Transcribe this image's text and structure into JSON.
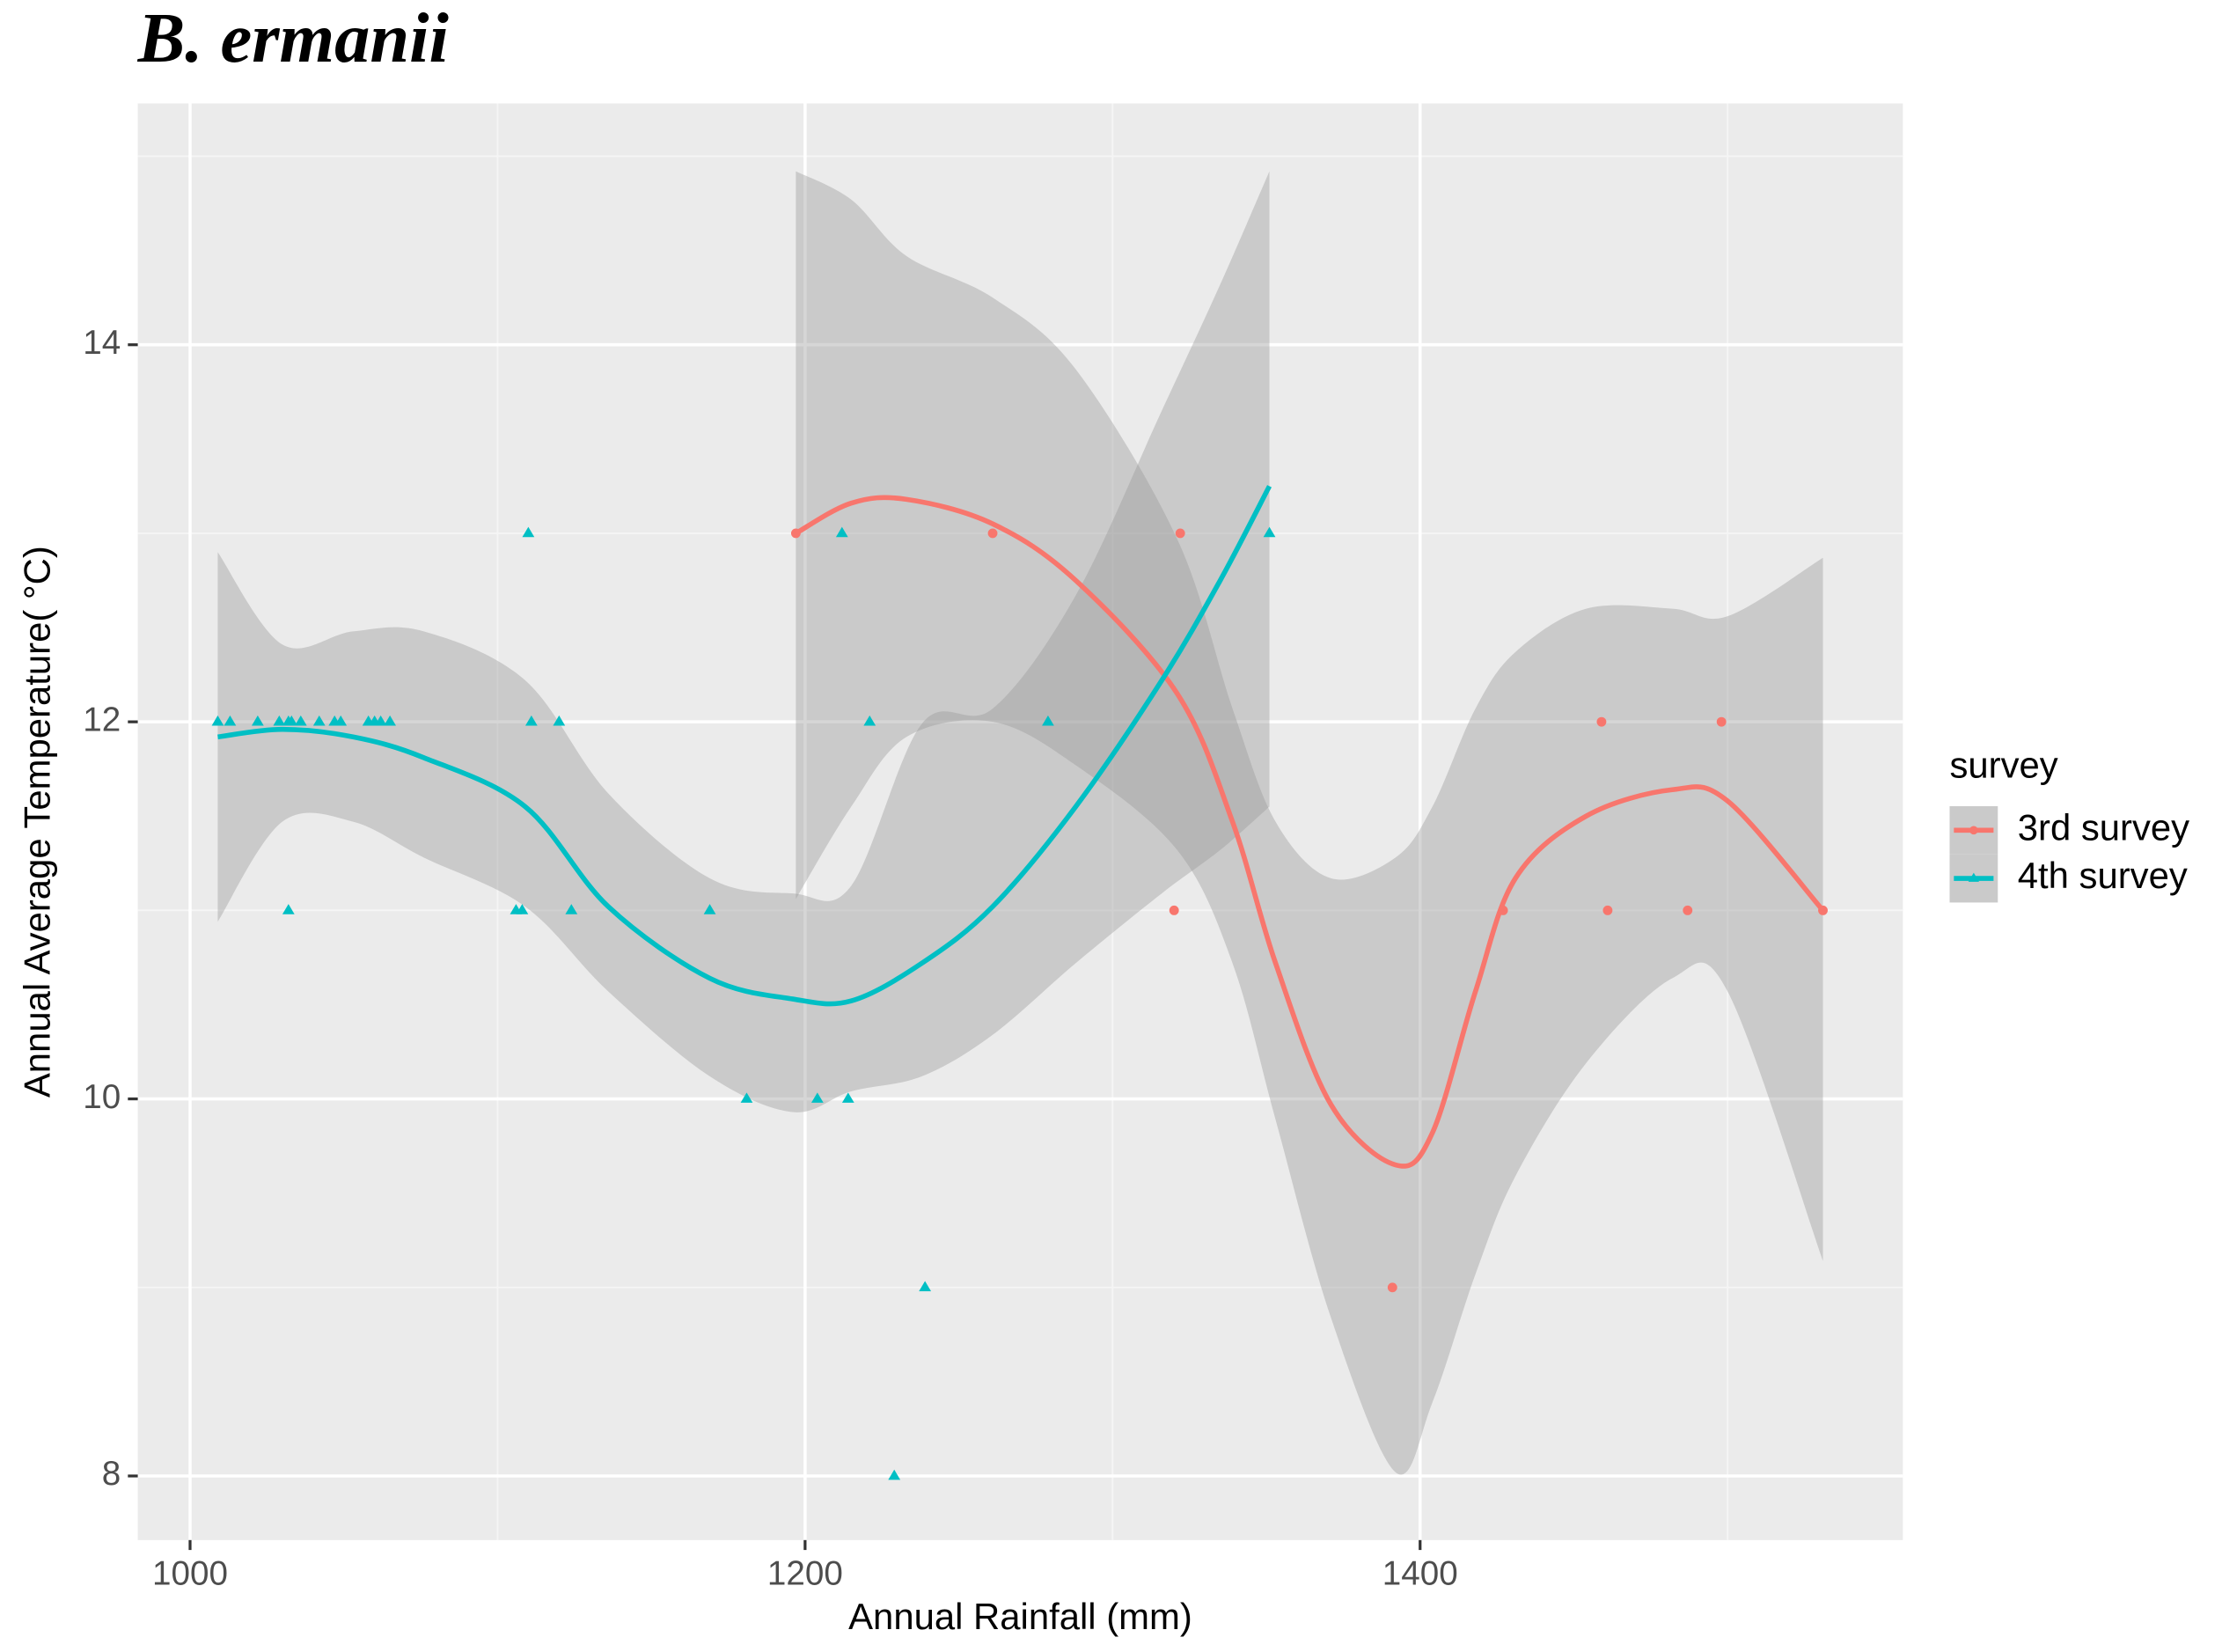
{
  "chart_data": {
    "type": "scatter",
    "title": "B. ermanii",
    "x_label": "Annual Rainfall (mm)",
    "y_label": "Annual Average Temperature( °C)",
    "legend_title": "survey",
    "legend_position": "right",
    "grid": true,
    "xlim": [
      983,
      1557
    ],
    "ylim": [
      7.66,
      15.28
    ],
    "xticks": [
      1000,
      1200,
      1400
    ],
    "yticks": [
      8,
      10,
      12,
      14
    ],
    "xminor": [
      1100,
      1300,
      1500
    ],
    "yminor": [
      9,
      11,
      13,
      15
    ],
    "ribbon_color": "#999999",
    "series": [
      {
        "name": "3rd survey",
        "color": "#f8766d",
        "marker": "circle",
        "x": [
          1197,
          1261,
          1322,
          1320,
          1391,
          1427,
          1459,
          1461,
          1487,
          1498,
          1531
        ],
        "values": [
          13,
          13,
          13,
          11,
          9,
          11,
          12,
          11,
          11,
          12,
          11
        ],
        "smooth": {
          "x": [
            1197,
            1215,
            1233,
            1261,
            1288,
            1321,
            1339,
            1353,
            1371,
            1392,
            1404,
            1418,
            1431,
            1454,
            1482,
            1500,
            1531
          ],
          "values": [
            13.0,
            13.16,
            13.18,
            13.05,
            12.75,
            12.15,
            11.47,
            10.72,
            9.97,
            9.65,
            9.82,
            10.57,
            11.17,
            11.5,
            11.64,
            11.58,
            11.0
          ],
          "upper": [
            14.92,
            14.77,
            14.47,
            14.25,
            13.87,
            12.97,
            12.07,
            11.47,
            11.17,
            11.28,
            11.55,
            12.07,
            12.37,
            12.6,
            12.6,
            12.56,
            12.87
          ],
          "lower": [
            11.06,
            11.55,
            11.92,
            12.0,
            11.77,
            11.32,
            10.72,
            9.89,
            8.84,
            8.02,
            8.39,
            9.07,
            9.59,
            10.19,
            10.64,
            10.57,
            9.14
          ]
        }
      },
      {
        "name": "4th survey",
        "color": "#00bfc4",
        "marker": "triangle",
        "x": [
          1009,
          1013,
          1022,
          1029,
          1032,
          1033,
          1036,
          1042,
          1047,
          1049,
          1058,
          1060,
          1062,
          1065,
          1111,
          1120,
          1221,
          1279,
          1110,
          1212,
          1351,
          1032,
          1106,
          1108,
          1124,
          1169,
          1181,
          1204,
          1214,
          1239,
          1229
        ],
        "values": [
          12,
          12,
          12,
          12,
          12,
          12,
          12,
          12,
          12,
          12,
          12,
          12,
          12,
          12,
          12,
          12,
          12,
          12,
          13,
          13,
          13,
          11,
          11,
          11,
          11,
          11,
          10,
          10,
          10,
          9,
          8
        ],
        "smooth": {
          "x": [
            1009,
            1030,
            1053,
            1076,
            1109,
            1136,
            1169,
            1196,
            1215,
            1238,
            1261,
            1288,
            1316,
            1335,
            1351
          ],
          "values": [
            11.92,
            11.96,
            11.92,
            11.81,
            11.55,
            11.02,
            10.64,
            10.53,
            10.52,
            10.72,
            11.02,
            11.55,
            12.22,
            12.75,
            13.25
          ],
          "upper": [
            12.9,
            12.41,
            12.48,
            12.48,
            12.22,
            11.62,
            11.17,
            11.09,
            11.13,
            11.99,
            12.07,
            12.67,
            13.65,
            14.32,
            14.92
          ],
          "lower": [
            10.94,
            11.47,
            11.47,
            11.28,
            11.02,
            10.57,
            10.12,
            9.93,
            10.04,
            10.12,
            10.34,
            10.72,
            11.09,
            11.32,
            11.55
          ]
        }
      }
    ]
  }
}
